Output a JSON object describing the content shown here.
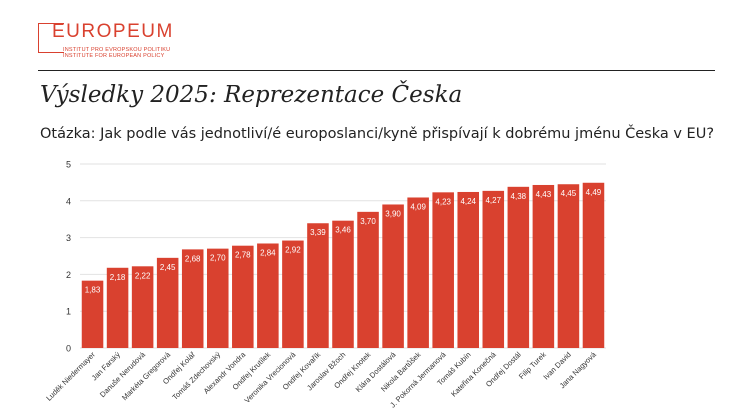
{
  "logo": {
    "name": "EUROPEUM",
    "sub1": "INSTITUT PRO EVROPSKOU POLITIKU",
    "sub2": "INSTITUTE FOR EUROPEAN POLICY"
  },
  "title": "Výsledky 2025: Reprezentace Česka",
  "question": "Otázka: Jak podle vás jednotliví/é europoslanci/kyně přispívají k dobrému jménu Česka v EU?",
  "colors": {
    "bar": "#d9412f",
    "grid": "#e2e2e2",
    "text": "#333333"
  },
  "chart_data": {
    "type": "bar",
    "title": "",
    "xlabel": "",
    "ylabel": "",
    "ylim": [
      0,
      5
    ],
    "yticks": [
      0,
      1,
      2,
      3,
      4,
      5
    ],
    "grid": true,
    "categories": [
      "Luděk Niedermayer",
      "Jan Farský",
      "Danuše Nerudová",
      "Markéta Gregorová",
      "Ondřej Kolář",
      "Tomáš Zdechovský",
      "Alexandr Vondra",
      "Ondřej Krutílek",
      "Veronika Vrecionová",
      "Ondřej Kovařík",
      "Jaroslav Bžoch",
      "Ondřej Knotek",
      "Klára Dostálová",
      "Nikola Bartůšek",
      "J. Pokorná Jermanová",
      "Tomáš Kubín",
      "Kateřina Konečná",
      "Ondřej Dostál",
      "Filip Turek",
      "Ivan David",
      "Jana Nagyová"
    ],
    "values": [
      1.83,
      2.18,
      2.22,
      2.45,
      2.68,
      2.7,
      2.78,
      2.84,
      2.92,
      3.39,
      3.46,
      3.7,
      3.9,
      4.09,
      4.23,
      4.24,
      4.27,
      4.38,
      4.43,
      4.45,
      4.49
    ],
    "value_labels": [
      "1,83",
      "2,18",
      "2,22",
      "2,45",
      "2,68",
      "2,70",
      "2,78",
      "2,84",
      "2,92",
      "3,39",
      "3,46",
      "3,70",
      "3,90",
      "4,09",
      "4,23",
      "4,24",
      "4,27",
      "4,38",
      "4,43",
      "4,45",
      "4,49"
    ]
  }
}
